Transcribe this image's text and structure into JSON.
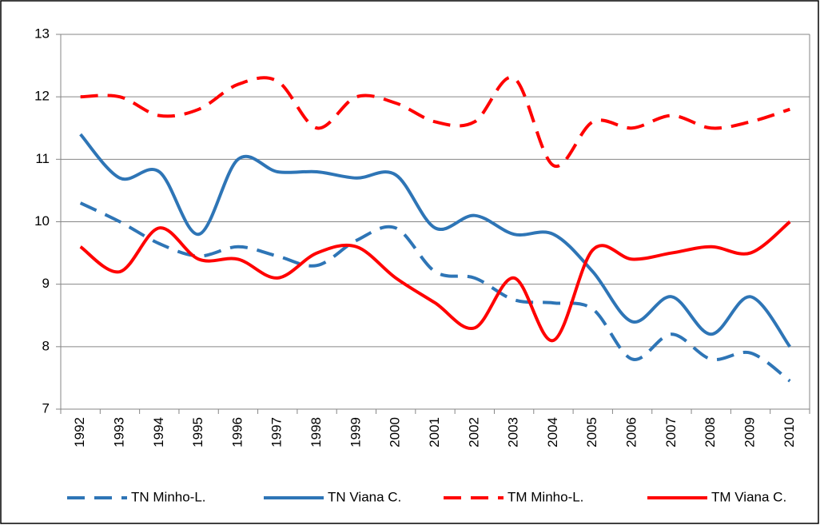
{
  "chart_data": {
    "type": "line",
    "categories": [
      "1992",
      "1993",
      "1994",
      "1995",
      "1996",
      "1997",
      "1998",
      "1999",
      "2000",
      "2001",
      "2002",
      "2003",
      "2004",
      "2005",
      "2006",
      "2007",
      "2008",
      "2009",
      "2010"
    ],
    "series": [
      {
        "name": "TN Minho-L.",
        "color": "#2e75b6",
        "dash": true,
        "values": [
          10.3,
          10.0,
          9.65,
          9.45,
          9.6,
          9.45,
          9.3,
          9.7,
          9.9,
          9.2,
          9.1,
          8.75,
          8.7,
          8.6,
          7.8,
          8.2,
          7.8,
          7.9,
          7.45
        ]
      },
      {
        "name": "TN Viana C.",
        "color": "#2e75b6",
        "dash": false,
        "values": [
          11.4,
          10.7,
          10.8,
          9.8,
          11.0,
          10.8,
          10.8,
          10.7,
          10.75,
          9.9,
          10.1,
          9.8,
          9.8,
          9.2,
          8.4,
          8.8,
          8.2,
          8.8,
          8.0
        ]
      },
      {
        "name": "TM Minho-L.",
        "color": "#ff0000",
        "dash": true,
        "values": [
          12.0,
          12.0,
          11.7,
          11.8,
          12.2,
          12.25,
          11.5,
          12.0,
          11.9,
          11.6,
          11.6,
          12.3,
          10.9,
          11.6,
          11.5,
          11.7,
          11.5,
          11.6,
          11.8
        ]
      },
      {
        "name": "TM Viana C.",
        "color": "#ff0000",
        "dash": false,
        "values": [
          9.6,
          9.2,
          9.9,
          9.4,
          9.4,
          9.1,
          9.5,
          9.6,
          9.1,
          8.7,
          8.3,
          9.1,
          8.1,
          9.55,
          9.4,
          9.5,
          9.6,
          9.5,
          10.0
        ]
      }
    ],
    "ylim": [
      7,
      13
    ],
    "yticks": [
      7,
      8,
      9,
      10,
      11,
      12,
      13
    ],
    "grid": true,
    "legend": "bottom"
  }
}
